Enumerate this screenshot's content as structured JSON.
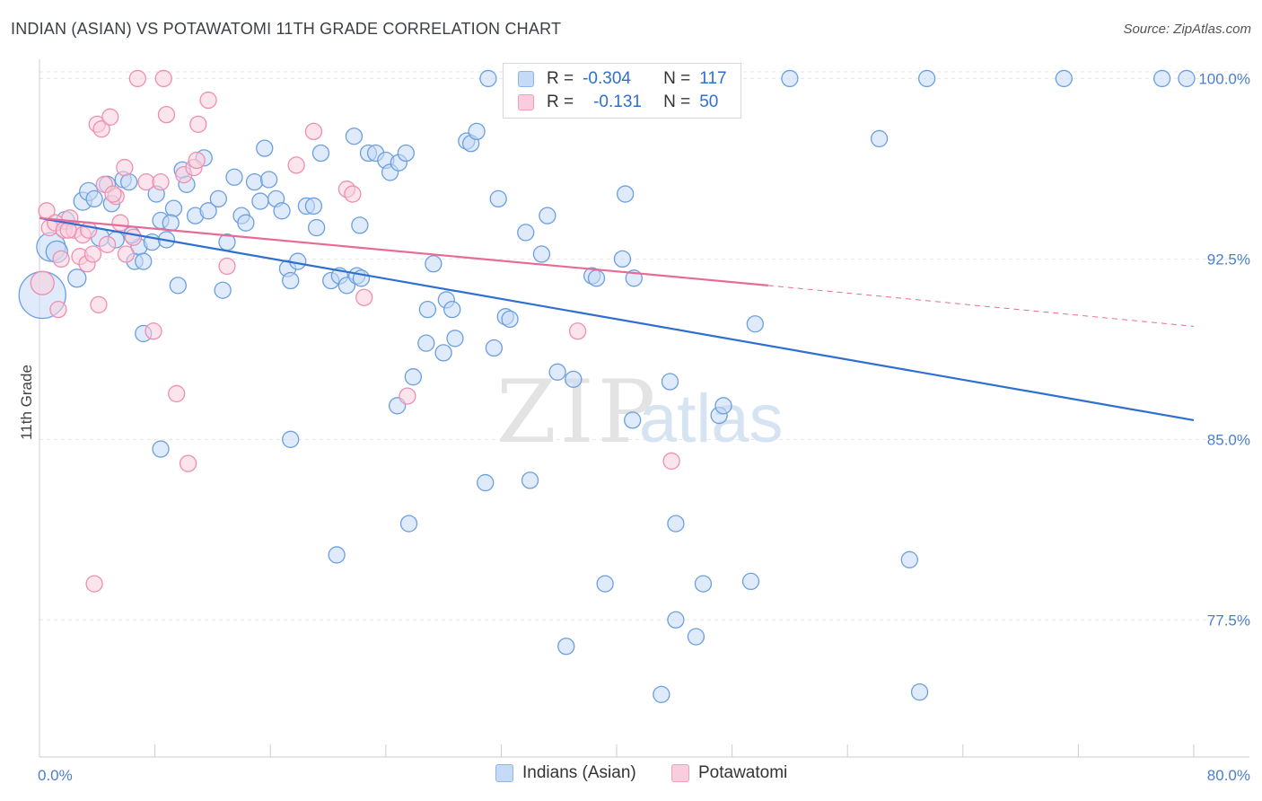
{
  "title": "INDIAN (ASIAN) VS POTAWATOMI 11TH GRADE CORRELATION CHART",
  "source": "Source: ZipAtlas.com",
  "watermark": {
    "zip": "ZIP",
    "atlas": "atlas"
  },
  "legend": {
    "r_label": "R =",
    "n_label": "N =",
    "rows": [
      {
        "r": "-0.304",
        "n": "117",
        "color": "#8fb6ec",
        "fill": "#c5daf6"
      },
      {
        "r": "-0.131",
        "n": "50",
        "color": "#f0a0bd",
        "fill": "#f9cddd"
      }
    ]
  },
  "bottom_legend": [
    "Indians (Asian)",
    "Potawatomi"
  ],
  "chart_data": {
    "type": "scatter",
    "ylabel": "11th Grade",
    "x_tick_labels": [
      "0.0%",
      "80.0%"
    ],
    "y_tick_labels": [
      "100.0%",
      "92.5%",
      "85.0%",
      "77.5%"
    ],
    "y_tick_values": [
      100.0,
      92.5,
      85.0,
      77.5
    ],
    "xlim": [
      0,
      80
    ],
    "ylim": [
      71.8,
      100.8
    ],
    "series": [
      {
        "name": "Indians (Asian)",
        "color": "#6b9fe0",
        "fill": "#c5daf6",
        "trend": {
          "x": [
            0,
            80
          ],
          "y": [
            94.2,
            85.8
          ],
          "color": "#2e6fd0"
        },
        "points": [
          [
            0.2,
            91.0,
            26
          ],
          [
            0.8,
            93.0,
            16
          ],
          [
            1.2,
            92.8,
            12
          ],
          [
            1.8,
            94.1,
            10
          ],
          [
            2.6,
            91.7,
            10
          ],
          [
            3.0,
            94.9,
            10
          ],
          [
            3.4,
            95.3,
            10
          ],
          [
            3.8,
            95.0,
            9
          ],
          [
            4.2,
            93.4,
            10
          ],
          [
            4.7,
            95.6,
            9
          ],
          [
            5.0,
            94.8,
            9
          ],
          [
            5.3,
            93.3,
            9
          ],
          [
            5.8,
            95.8,
            9
          ],
          [
            6.2,
            95.7,
            9
          ],
          [
            6.6,
            92.4,
            9
          ],
          [
            6.9,
            93.0,
            9
          ],
          [
            7.2,
            89.4,
            9
          ],
          [
            7.8,
            93.2,
            9
          ],
          [
            8.1,
            95.2,
            9
          ],
          [
            8.4,
            94.1,
            9
          ],
          [
            8.8,
            93.3,
            9
          ],
          [
            9.3,
            94.6,
            9
          ],
          [
            9.6,
            91.4,
            9
          ],
          [
            9.9,
            96.2,
            9
          ],
          [
            10.2,
            95.6,
            9
          ],
          [
            10.8,
            94.3,
            9
          ],
          [
            11.4,
            96.7,
            9
          ],
          [
            11.7,
            94.5,
            9
          ],
          [
            12.4,
            95.0,
            9
          ],
          [
            13.0,
            93.2,
            9
          ],
          [
            13.5,
            95.9,
            9
          ],
          [
            14.0,
            94.3,
            9
          ],
          [
            14.3,
            94.0,
            9
          ],
          [
            14.9,
            95.7,
            9
          ],
          [
            15.3,
            94.9,
            9
          ],
          [
            15.6,
            97.1,
            9
          ],
          [
            15.9,
            95.8,
            9
          ],
          [
            16.4,
            95.0,
            9
          ],
          [
            16.8,
            94.5,
            9
          ],
          [
            17.2,
            92.1,
            9
          ],
          [
            17.4,
            91.6,
            9
          ],
          [
            17.9,
            92.4,
            9
          ],
          [
            18.5,
            94.7,
            9
          ],
          [
            19.0,
            94.7,
            9
          ],
          [
            19.2,
            93.8,
            9
          ],
          [
            19.5,
            96.9,
            9
          ],
          [
            20.2,
            91.6,
            9
          ],
          [
            20.8,
            91.8,
            9
          ],
          [
            21.3,
            91.4,
            9
          ],
          [
            21.8,
            97.6,
            9
          ],
          [
            22.0,
            91.8,
            9
          ],
          [
            22.3,
            91.7,
            9
          ],
          [
            22.2,
            93.9,
            9
          ],
          [
            22.8,
            96.9,
            9
          ],
          [
            23.3,
            96.9,
            9
          ],
          [
            24.0,
            96.6,
            9
          ],
          [
            24.3,
            96.1,
            9
          ],
          [
            24.9,
            96.5,
            9
          ],
          [
            25.4,
            96.9,
            9
          ],
          [
            24.8,
            86.4,
            9
          ],
          [
            25.6,
            81.5,
            9
          ],
          [
            25.9,
            87.6,
            9
          ],
          [
            26.8,
            89.0,
            9
          ],
          [
            26.9,
            90.4,
            9
          ],
          [
            27.3,
            92.3,
            9
          ],
          [
            28.0,
            88.6,
            9
          ],
          [
            28.2,
            90.8,
            9
          ],
          [
            28.6,
            90.4,
            9
          ],
          [
            28.8,
            89.2,
            9
          ],
          [
            29.6,
            97.4,
            9
          ],
          [
            29.9,
            97.3,
            9
          ],
          [
            30.3,
            97.8,
            9
          ],
          [
            30.9,
            83.2,
            9
          ],
          [
            31.1,
            100.0,
            9
          ],
          [
            31.5,
            88.8,
            9
          ],
          [
            31.8,
            95.0,
            9
          ],
          [
            32.3,
            90.1,
            9
          ],
          [
            32.6,
            90.0,
            9
          ],
          [
            33.7,
            93.6,
            9
          ],
          [
            34.0,
            83.3,
            9
          ],
          [
            34.8,
            92.7,
            9
          ],
          [
            35.2,
            94.3,
            9
          ],
          [
            35.9,
            87.8,
            9
          ],
          [
            36.5,
            76.4,
            9
          ],
          [
            37.0,
            87.5,
            9
          ],
          [
            38.3,
            91.8,
            9
          ],
          [
            38.6,
            91.7,
            9
          ],
          [
            39.2,
            79.0,
            9
          ],
          [
            40.4,
            92.5,
            9
          ],
          [
            40.6,
            95.2,
            9
          ],
          [
            41.1,
            85.8,
            9
          ],
          [
            41.2,
            91.7,
            9
          ],
          [
            43.1,
            74.4,
            9
          ],
          [
            43.7,
            87.4,
            9
          ],
          [
            44.1,
            81.5,
            9
          ],
          [
            44.1,
            77.5,
            9
          ],
          [
            45.5,
            76.8,
            9
          ],
          [
            46.0,
            79.0,
            9
          ],
          [
            47.1,
            86.0,
            9
          ],
          [
            47.4,
            86.4,
            9
          ],
          [
            49.3,
            79.1,
            9
          ],
          [
            49.6,
            89.8,
            9
          ],
          [
            52.0,
            100.0,
            9
          ],
          [
            58.2,
            97.5,
            9
          ],
          [
            60.3,
            80.0,
            9
          ],
          [
            61.0,
            74.5,
            9
          ],
          [
            61.5,
            100.0,
            9
          ],
          [
            71.0,
            100.0,
            9
          ],
          [
            77.8,
            100.0,
            9
          ],
          [
            79.5,
            100.0,
            9
          ],
          [
            12.7,
            91.2,
            9
          ],
          [
            9.1,
            94.0,
            9
          ],
          [
            6.4,
            93.5,
            9
          ],
          [
            8.4,
            84.6,
            9
          ],
          [
            17.4,
            85.0,
            9
          ],
          [
            20.6,
            80.2,
            9
          ],
          [
            7.2,
            92.4,
            9
          ]
        ]
      },
      {
        "name": "Potawatomi",
        "color": "#ee8fb0",
        "fill": "#f9cddd",
        "trend": {
          "x": [
            0,
            50.5
          ],
          "y": [
            94.2,
            91.4
          ],
          "color": "#e86a96"
        },
        "trend_dashed": {
          "x": [
            50.5,
            80
          ],
          "y": [
            91.4,
            89.7
          ]
        },
        "points": [
          [
            0.2,
            91.5,
            13
          ],
          [
            0.5,
            94.5,
            9
          ],
          [
            0.7,
            93.8,
            9
          ],
          [
            1.1,
            94.0,
            9
          ],
          [
            1.3,
            90.4,
            9
          ],
          [
            1.5,
            92.5,
            9
          ],
          [
            1.7,
            93.7,
            9
          ],
          [
            2.1,
            94.2,
            9
          ],
          [
            2.4,
            93.7,
            9
          ],
          [
            2.8,
            92.6,
            9
          ],
          [
            3.0,
            93.5,
            9
          ],
          [
            3.3,
            92.3,
            9
          ],
          [
            3.7,
            92.7,
            9
          ],
          [
            3.8,
            79.0,
            9
          ],
          [
            4.0,
            98.1,
            9
          ],
          [
            4.1,
            90.6,
            9
          ],
          [
            4.3,
            97.9,
            9
          ],
          [
            4.5,
            95.6,
            9
          ],
          [
            4.7,
            93.1,
            9
          ],
          [
            4.9,
            98.4,
            9
          ],
          [
            5.3,
            95.1,
            9
          ],
          [
            5.6,
            94.0,
            9
          ],
          [
            5.9,
            96.3,
            9
          ],
          [
            6.0,
            92.7,
            9
          ],
          [
            6.5,
            93.4,
            9
          ],
          [
            6.8,
            100.0,
            9
          ],
          [
            7.4,
            95.7,
            9
          ],
          [
            7.9,
            89.5,
            9
          ],
          [
            8.4,
            95.7,
            9
          ],
          [
            8.6,
            100.0,
            9
          ],
          [
            8.8,
            98.5,
            9
          ],
          [
            9.5,
            86.9,
            9
          ],
          [
            10.0,
            96.0,
            9
          ],
          [
            10.3,
            84.0,
            9
          ],
          [
            10.7,
            96.3,
            9
          ],
          [
            11.0,
            98.1,
            9
          ],
          [
            11.7,
            99.1,
            9
          ],
          [
            13.0,
            92.2,
            9
          ],
          [
            17.8,
            96.4,
            9
          ],
          [
            19.0,
            97.8,
            9
          ],
          [
            21.3,
            95.4,
            9
          ],
          [
            21.7,
            95.2,
            9
          ],
          [
            22.5,
            90.9,
            9
          ],
          [
            25.5,
            86.8,
            9
          ],
          [
            37.3,
            89.5,
            9
          ],
          [
            43.8,
            84.1,
            9
          ],
          [
            2.0,
            93.7,
            9
          ],
          [
            5.1,
            95.2,
            9
          ],
          [
            3.4,
            93.7,
            9
          ],
          [
            10.9,
            96.6,
            9
          ]
        ]
      }
    ]
  }
}
